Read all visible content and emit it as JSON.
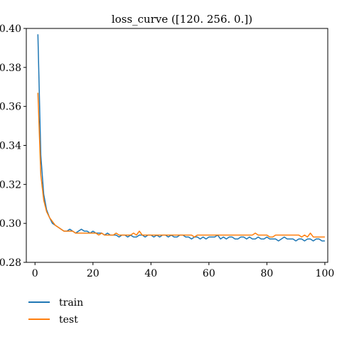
{
  "chart_data": {
    "type": "line",
    "title": "loss_curve ([120. 256. 0.])",
    "xlabel": "",
    "ylabel": "",
    "xlim": [
      -3,
      101
    ],
    "ylim": [
      0.28,
      0.4
    ],
    "xticks": [
      0,
      20,
      40,
      60,
      80,
      100
    ],
    "xtick_labels": [
      "0",
      "20",
      "40",
      "60",
      "80",
      "100"
    ],
    "yticks": [
      0.28,
      0.3,
      0.32,
      0.34,
      0.36,
      0.38,
      0.4
    ],
    "ytick_labels": [
      "0.28",
      "0.30",
      "0.32",
      "0.34",
      "0.36",
      "0.38",
      "0.40"
    ],
    "grid": false,
    "legend_position": "below-left",
    "series": [
      {
        "name": "train",
        "color": "#1f77b4",
        "x": [
          1,
          2,
          3,
          4,
          5,
          6,
          7,
          8,
          9,
          10,
          11,
          12,
          13,
          14,
          15,
          16,
          17,
          18,
          19,
          20,
          21,
          22,
          23,
          24,
          25,
          26,
          27,
          28,
          29,
          30,
          31,
          32,
          33,
          34,
          35,
          36,
          37,
          38,
          39,
          40,
          41,
          42,
          43,
          44,
          45,
          46,
          47,
          48,
          49,
          50,
          51,
          52,
          53,
          54,
          55,
          56,
          57,
          58,
          59,
          60,
          61,
          62,
          63,
          64,
          65,
          66,
          67,
          68,
          69,
          70,
          71,
          72,
          73,
          74,
          75,
          76,
          77,
          78,
          79,
          80,
          81,
          82,
          83,
          84,
          85,
          86,
          87,
          88,
          89,
          90,
          91,
          92,
          93,
          94,
          95,
          96,
          97,
          98,
          99,
          100
        ],
        "values": [
          0.397,
          0.335,
          0.315,
          0.307,
          0.303,
          0.3,
          0.299,
          0.298,
          0.297,
          0.296,
          0.296,
          0.297,
          0.296,
          0.295,
          0.296,
          0.297,
          0.296,
          0.296,
          0.295,
          0.296,
          0.295,
          0.295,
          0.295,
          0.294,
          0.295,
          0.294,
          0.294,
          0.294,
          0.293,
          0.294,
          0.294,
          0.293,
          0.294,
          0.293,
          0.293,
          0.294,
          0.294,
          0.293,
          0.294,
          0.294,
          0.293,
          0.294,
          0.293,
          0.294,
          0.294,
          0.293,
          0.294,
          0.293,
          0.293,
          0.294,
          0.294,
          0.293,
          0.293,
          0.292,
          0.293,
          0.293,
          0.292,
          0.293,
          0.292,
          0.293,
          0.293,
          0.293,
          0.294,
          0.292,
          0.293,
          0.292,
          0.293,
          0.293,
          0.292,
          0.292,
          0.293,
          0.293,
          0.292,
          0.293,
          0.292,
          0.292,
          0.293,
          0.292,
          0.292,
          0.293,
          0.292,
          0.292,
          0.292,
          0.291,
          0.292,
          0.293,
          0.292,
          0.292,
          0.292,
          0.291,
          0.292,
          0.292,
          0.291,
          0.292,
          0.292,
          0.291,
          0.292,
          0.292,
          0.291,
          0.291
        ]
      },
      {
        "name": "test",
        "color": "#ff7f0e",
        "x": [
          1,
          2,
          3,
          4,
          5,
          6,
          7,
          8,
          9,
          10,
          11,
          12,
          13,
          14,
          15,
          16,
          17,
          18,
          19,
          20,
          21,
          22,
          23,
          24,
          25,
          26,
          27,
          28,
          29,
          30,
          31,
          32,
          33,
          34,
          35,
          36,
          37,
          38,
          39,
          40,
          41,
          42,
          43,
          44,
          45,
          46,
          47,
          48,
          49,
          50,
          51,
          52,
          53,
          54,
          55,
          56,
          57,
          58,
          59,
          60,
          61,
          62,
          63,
          64,
          65,
          66,
          67,
          68,
          69,
          70,
          71,
          72,
          73,
          74,
          75,
          76,
          77,
          78,
          79,
          80,
          81,
          82,
          83,
          84,
          85,
          86,
          87,
          88,
          89,
          90,
          91,
          92,
          93,
          94,
          95,
          96,
          97,
          98,
          99,
          100
        ],
        "values": [
          0.367,
          0.325,
          0.312,
          0.306,
          0.303,
          0.301,
          0.299,
          0.298,
          0.297,
          0.296,
          0.296,
          0.296,
          0.296,
          0.295,
          0.295,
          0.295,
          0.295,
          0.295,
          0.295,
          0.295,
          0.295,
          0.294,
          0.295,
          0.294,
          0.294,
          0.294,
          0.294,
          0.295,
          0.294,
          0.294,
          0.294,
          0.294,
          0.294,
          0.295,
          0.294,
          0.296,
          0.294,
          0.294,
          0.294,
          0.294,
          0.294,
          0.294,
          0.294,
          0.294,
          0.294,
          0.294,
          0.294,
          0.294,
          0.294,
          0.294,
          0.294,
          0.294,
          0.294,
          0.294,
          0.293,
          0.294,
          0.294,
          0.294,
          0.294,
          0.294,
          0.294,
          0.294,
          0.294,
          0.294,
          0.294,
          0.294,
          0.294,
          0.294,
          0.294,
          0.294,
          0.294,
          0.294,
          0.294,
          0.294,
          0.294,
          0.295,
          0.294,
          0.294,
          0.294,
          0.294,
          0.293,
          0.293,
          0.294,
          0.294,
          0.294,
          0.294,
          0.294,
          0.294,
          0.294,
          0.294,
          0.294,
          0.293,
          0.294,
          0.293,
          0.295,
          0.293,
          0.293,
          0.293,
          0.293,
          0.293
        ]
      }
    ]
  }
}
